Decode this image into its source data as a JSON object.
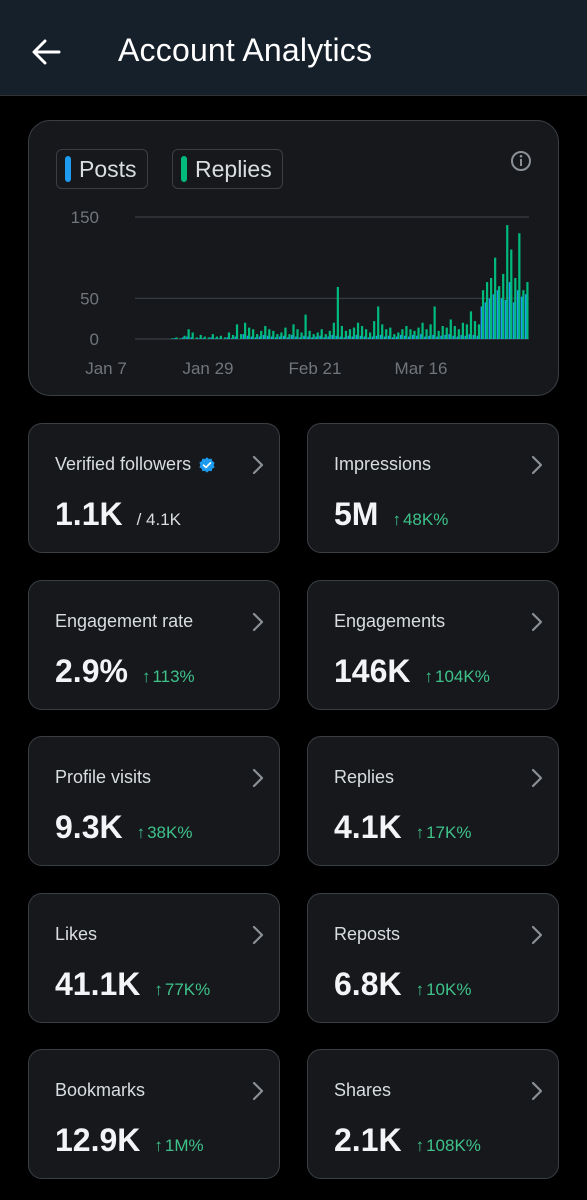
{
  "header": {
    "title": "Account Analytics",
    "back_icon": "arrow-left-icon"
  },
  "chart": {
    "legend": [
      {
        "label": "Posts",
        "color": "#1d9bf0"
      },
      {
        "label": "Replies",
        "color": "#00ba7c"
      }
    ],
    "info_icon": "info-icon"
  },
  "chart_data": {
    "type": "bar",
    "x_tick_labels": [
      "Jan 7",
      "Jan 29",
      "Feb 21",
      "Mar 16"
    ],
    "y_ticks": [
      0,
      50,
      150
    ],
    "ylim": [
      0,
      150
    ],
    "legend_placement": "top-left",
    "series": [
      {
        "name": "Posts",
        "color": "#1d9bf0",
        "values": [
          0,
          0,
          0,
          1,
          0,
          2,
          3,
          2,
          0,
          1,
          1,
          0,
          2,
          1,
          1,
          0,
          2,
          1,
          3,
          0,
          6,
          4,
          3,
          2,
          3,
          5,
          4,
          3,
          2,
          3,
          4,
          2,
          5,
          3,
          2,
          4,
          3,
          2,
          3,
          4,
          2,
          3,
          5,
          4,
          3,
          2,
          4,
          3,
          5,
          4,
          3,
          2,
          3,
          4,
          5,
          3,
          4,
          2,
          3,
          5,
          4,
          3,
          5,
          4,
          6,
          3,
          4,
          5,
          3,
          4,
          5,
          6,
          4,
          3,
          5,
          4,
          6,
          5,
          4,
          40,
          45,
          50,
          55,
          60,
          50,
          48,
          70,
          45,
          60,
          52,
          55
        ]
      },
      {
        "name": "Replies",
        "color": "#00ba7c",
        "values": [
          0,
          0,
          1,
          2,
          1,
          4,
          12,
          8,
          2,
          5,
          3,
          2,
          6,
          3,
          4,
          2,
          8,
          5,
          18,
          6,
          20,
          14,
          12,
          6,
          10,
          16,
          12,
          10,
          6,
          8,
          14,
          6,
          18,
          12,
          8,
          30,
          10,
          6,
          8,
          12,
          6,
          10,
          20,
          64,
          16,
          10,
          12,
          14,
          20,
          16,
          12,
          8,
          22,
          40,
          18,
          12,
          14,
          6,
          8,
          12,
          16,
          12,
          10,
          14,
          20,
          12,
          18,
          40,
          10,
          16,
          14,
          24,
          16,
          12,
          20,
          18,
          34,
          22,
          18,
          60,
          70,
          75,
          100,
          65,
          80,
          140,
          110,
          75,
          130,
          60,
          70
        ]
      }
    ]
  },
  "stats": [
    {
      "label": "Verified followers",
      "value": "1.1K",
      "sub": "/ 4.1K",
      "change": "",
      "verified": true
    },
    {
      "label": "Impressions",
      "value": "5M",
      "sub": "",
      "change": "48K%",
      "verified": false
    },
    {
      "label": "Engagement rate",
      "value": "2.9%",
      "sub": "",
      "change": "113%",
      "verified": false
    },
    {
      "label": "Engagements",
      "value": "146K",
      "sub": "",
      "change": "104K%",
      "verified": false
    },
    {
      "label": "Profile visits",
      "value": "9.3K",
      "sub": "",
      "change": "38K%",
      "verified": false
    },
    {
      "label": "Replies",
      "value": "4.1K",
      "sub": "",
      "change": "17K%",
      "verified": false
    },
    {
      "label": "Likes",
      "value": "41.1K",
      "sub": "",
      "change": "77K%",
      "verified": false
    },
    {
      "label": "Reposts",
      "value": "6.8K",
      "sub": "",
      "change": "10K%",
      "verified": false
    },
    {
      "label": "Bookmarks",
      "value": "12.9K",
      "sub": "",
      "change": "1M%",
      "verified": false
    },
    {
      "label": "Shares",
      "value": "2.1K",
      "sub": "",
      "change": "108K%",
      "verified": false
    }
  ],
  "colors": {
    "accent_up": "#3ec28a",
    "verified_badge": "#1d9bf0"
  },
  "icons": {
    "chevron": "chevron-right-icon",
    "up_arrow": "arrow-up-icon",
    "verified": "verified-badge-icon"
  },
  "arrow_glyph": "↑"
}
